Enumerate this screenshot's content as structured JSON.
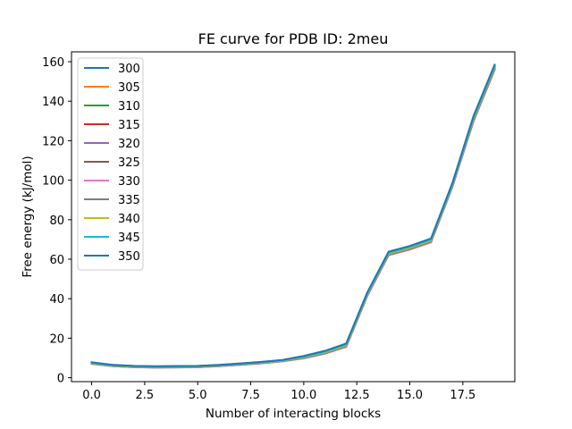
{
  "chart_data": {
    "type": "line",
    "title": "FE curve for PDB ID: 2meu",
    "xlabel": "Number of interacting blocks",
    "ylabel": "Free energy (kJ/mol)",
    "xlim": [
      -0.95,
      19.95
    ],
    "ylim": [
      -2.0,
      165.0
    ],
    "xticks": [
      0.0,
      2.5,
      5.0,
      7.5,
      10.0,
      12.5,
      15.0,
      17.5
    ],
    "xtick_labels": [
      "0.0",
      "2.5",
      "5.0",
      "7.5",
      "10.0",
      "12.5",
      "15.0",
      "17.5"
    ],
    "yticks": [
      0,
      20,
      40,
      60,
      80,
      100,
      120,
      140,
      160
    ],
    "ytick_labels": [
      "0",
      "20",
      "40",
      "60",
      "80",
      "100",
      "120",
      "140",
      "160"
    ],
    "grid": false,
    "legend_position": "upper-left",
    "x": [
      0,
      1,
      2,
      3,
      4,
      5,
      6,
      7,
      8,
      9,
      10,
      11,
      12,
      13,
      14,
      15,
      16,
      17,
      18,
      19
    ],
    "series": [
      {
        "name": "300",
        "color": "#1f77b4",
        "values": [
          7.6,
          6.4,
          5.9,
          5.7,
          5.8,
          5.9,
          6.4,
          7.1,
          7.9,
          8.9,
          10.8,
          13.4,
          17.0,
          43.0,
          63.5,
          66.4,
          70.2,
          98.0,
          132.0,
          158.0
        ]
      },
      {
        "name": "305",
        "color": "#ff7f0e",
        "values": [
          7.4,
          6.2,
          5.7,
          5.5,
          5.6,
          5.7,
          6.2,
          6.9,
          7.7,
          8.7,
          10.5,
          13.0,
          16.6,
          42.6,
          63.1,
          66.0,
          69.8,
          97.6,
          131.4,
          157.6
        ]
      },
      {
        "name": "310",
        "color": "#2ca02c",
        "values": [
          7.3,
          6.1,
          5.6,
          5.4,
          5.5,
          5.6,
          6.1,
          6.8,
          7.6,
          8.6,
          10.3,
          12.8,
          16.3,
          42.3,
          62.8,
          65.7,
          69.5,
          97.3,
          131.0,
          157.2
        ]
      },
      {
        "name": "315",
        "color": "#d62728",
        "values": [
          7.2,
          6.0,
          5.5,
          5.3,
          5.4,
          5.5,
          6.0,
          6.7,
          7.5,
          8.5,
          10.1,
          12.6,
          16.1,
          42.0,
          62.5,
          65.4,
          69.2,
          97.0,
          130.6,
          156.8
        ]
      },
      {
        "name": "320",
        "color": "#9467bd",
        "values": [
          7.1,
          5.9,
          5.4,
          5.2,
          5.3,
          5.4,
          5.9,
          6.6,
          7.4,
          8.4,
          10.0,
          12.4,
          15.9,
          41.8,
          62.3,
          65.2,
          68.9,
          96.7,
          130.2,
          156.4
        ]
      },
      {
        "name": "325",
        "color": "#8c564b",
        "values": [
          7.0,
          5.8,
          5.3,
          5.1,
          5.2,
          5.3,
          5.8,
          6.5,
          7.3,
          8.3,
          9.8,
          12.2,
          15.6,
          41.5,
          62.0,
          64.9,
          68.6,
          96.4,
          129.8,
          155.9
        ]
      },
      {
        "name": "330",
        "color": "#e377c2",
        "values": [
          7.0,
          5.8,
          5.3,
          5.1,
          5.2,
          5.3,
          5.8,
          6.5,
          7.3,
          8.3,
          9.8,
          12.2,
          15.6,
          41.5,
          62.0,
          64.9,
          68.6,
          96.4,
          129.8,
          155.9
        ]
      },
      {
        "name": "335",
        "color": "#7f7f7f",
        "values": [
          7.1,
          5.9,
          5.4,
          5.2,
          5.3,
          5.4,
          5.9,
          6.6,
          7.4,
          8.4,
          10.0,
          12.4,
          15.9,
          41.8,
          62.3,
          65.2,
          68.9,
          96.7,
          130.2,
          156.4
        ]
      },
      {
        "name": "340",
        "color": "#bcbd22",
        "values": [
          7.3,
          6.1,
          5.6,
          5.4,
          5.5,
          5.6,
          6.1,
          6.8,
          7.6,
          8.6,
          10.3,
          12.8,
          16.3,
          42.3,
          62.8,
          65.7,
          69.5,
          97.3,
          131.0,
          157.2
        ]
      },
      {
        "name": "345",
        "color": "#17becf",
        "values": [
          7.5,
          6.3,
          5.8,
          5.6,
          5.7,
          5.8,
          6.3,
          7.0,
          7.8,
          8.8,
          10.6,
          13.2,
          16.8,
          42.8,
          63.3,
          66.2,
          70.0,
          97.8,
          131.7,
          157.8
        ]
      },
      {
        "name": "350",
        "color": "#1f77b4",
        "values": [
          7.8,
          6.5,
          6.0,
          5.8,
          5.9,
          6.0,
          6.5,
          7.2,
          8.0,
          9.0,
          11.0,
          13.6,
          17.3,
          43.3,
          63.8,
          66.7,
          70.5,
          98.4,
          132.4,
          158.5
        ]
      }
    ]
  }
}
